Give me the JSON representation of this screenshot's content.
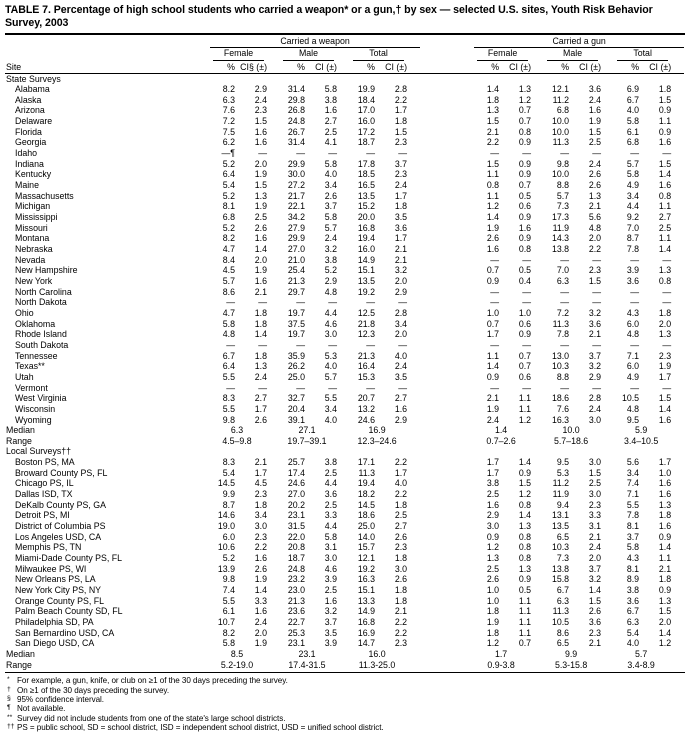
{
  "title": "TABLE 7. Percentage of high school students who carried a weapon* or a gun,† by sex — selected U.S. sites, Youth Risk Behavior Survey, 2003",
  "header": {
    "site_label": "Site",
    "groups": [
      {
        "label": "Carried a weapon"
      },
      {
        "label": "Carried a gun"
      }
    ],
    "subgroups": [
      "Female",
      "Male",
      "Total"
    ],
    "col_pct": "%",
    "col_ci_first": "CI§ (±)",
    "col_ci": "CI (±)"
  },
  "sections": [
    {
      "label": "State Surveys",
      "rows": [
        {
          "site": "Alabama",
          "values": [
            "8.2",
            "2.9",
            "31.4",
            "5.8",
            "19.9",
            "2.8",
            "1.4",
            "1.3",
            "12.1",
            "3.6",
            "6.9",
            "1.8"
          ]
        },
        {
          "site": "Alaska",
          "values": [
            "6.3",
            "2.4",
            "29.8",
            "3.8",
            "18.4",
            "2.2",
            "1.8",
            "1.2",
            "11.2",
            "2.4",
            "6.7",
            "1.5"
          ]
        },
        {
          "site": "Arizona",
          "values": [
            "7.6",
            "2.3",
            "26.8",
            "1.6",
            "17.0",
            "1.7",
            "1.3",
            "0.7",
            "6.8",
            "1.6",
            "4.0",
            "0.9"
          ]
        },
        {
          "site": "Delaware",
          "values": [
            "7.2",
            "1.5",
            "24.8",
            "2.7",
            "16.0",
            "1.8",
            "1.5",
            "0.7",
            "10.0",
            "1.9",
            "5.8",
            "1.1"
          ]
        },
        {
          "site": "Florida",
          "values": [
            "7.5",
            "1.6",
            "26.7",
            "2.5",
            "17.2",
            "1.5",
            "2.1",
            "0.8",
            "10.0",
            "1.5",
            "6.1",
            "0.9"
          ]
        },
        {
          "site": "Georgia",
          "values": [
            "6.2",
            "1.6",
            "31.4",
            "4.1",
            "18.7",
            "2.3",
            "2.2",
            "0.9",
            "11.3",
            "2.5",
            "6.8",
            "1.6"
          ]
        },
        {
          "site": "Idaho",
          "values": [
            "—¶",
            "—",
            "—",
            "—",
            "—",
            "—",
            "—",
            "—",
            "—",
            "—",
            "—",
            "—"
          ]
        },
        {
          "site": "Indiana",
          "values": [
            "5.2",
            "2.0",
            "29.9",
            "5.8",
            "17.8",
            "3.7",
            "1.5",
            "0.9",
            "9.8",
            "2.4",
            "5.7",
            "1.5"
          ]
        },
        {
          "site": "Kentucky",
          "values": [
            "6.4",
            "1.9",
            "30.0",
            "4.0",
            "18.5",
            "2.3",
            "1.1",
            "0.9",
            "10.0",
            "2.6",
            "5.8",
            "1.4"
          ]
        },
        {
          "site": "Maine",
          "values": [
            "5.4",
            "1.5",
            "27.2",
            "3.4",
            "16.5",
            "2.4",
            "0.8",
            "0.7",
            "8.8",
            "2.6",
            "4.9",
            "1.6"
          ]
        },
        {
          "site": "Massachusetts",
          "values": [
            "5.2",
            "1.3",
            "21.7",
            "2.6",
            "13.5",
            "1.7",
            "1.1",
            "0.5",
            "5.7",
            "1.3",
            "3.4",
            "0.8"
          ]
        },
        {
          "site": "Michigan",
          "values": [
            "8.1",
            "1.9",
            "22.1",
            "3.7",
            "15.2",
            "1.8",
            "1.2",
            "0.6",
            "7.3",
            "2.1",
            "4.4",
            "1.1"
          ]
        },
        {
          "site": "Mississippi",
          "values": [
            "6.8",
            "2.5",
            "34.2",
            "5.8",
            "20.0",
            "3.5",
            "1.4",
            "0.9",
            "17.3",
            "5.6",
            "9.2",
            "2.7"
          ]
        },
        {
          "site": "Missouri",
          "values": [
            "5.2",
            "2.6",
            "27.9",
            "5.7",
            "16.8",
            "3.6",
            "1.9",
            "1.6",
            "11.9",
            "4.8",
            "7.0",
            "2.5"
          ]
        },
        {
          "site": "Montana",
          "values": [
            "8.2",
            "1.6",
            "29.9",
            "2.4",
            "19.4",
            "1.7",
            "2.6",
            "0.9",
            "14.3",
            "2.0",
            "8.7",
            "1.1"
          ]
        },
        {
          "site": "Nebraska",
          "values": [
            "4.7",
            "1.4",
            "27.0",
            "3.2",
            "16.0",
            "2.1",
            "1.6",
            "0.8",
            "13.8",
            "2.2",
            "7.8",
            "1.4"
          ]
        },
        {
          "site": "Nevada",
          "values": [
            "8.4",
            "2.0",
            "21.0",
            "3.8",
            "14.9",
            "2.1",
            "—",
            "—",
            "—",
            "—",
            "—",
            "—"
          ]
        },
        {
          "site": "New Hampshire",
          "values": [
            "4.5",
            "1.9",
            "25.4",
            "5.2",
            "15.1",
            "3.2",
            "0.7",
            "0.5",
            "7.0",
            "2.3",
            "3.9",
            "1.3"
          ]
        },
        {
          "site": "New York",
          "values": [
            "5.7",
            "1.6",
            "21.3",
            "2.9",
            "13.5",
            "2.0",
            "0.9",
            "0.4",
            "6.3",
            "1.5",
            "3.6",
            "0.8"
          ]
        },
        {
          "site": "North Carolina",
          "values": [
            "8.6",
            "2.1",
            "29.7",
            "4.8",
            "19.2",
            "2.9",
            "—",
            "—",
            "—",
            "—",
            "—",
            "—"
          ]
        },
        {
          "site": "North Dakota",
          "values": [
            "—",
            "—",
            "—",
            "—",
            "—",
            "—",
            "—",
            "—",
            "—",
            "—",
            "—",
            "—"
          ]
        },
        {
          "site": "Ohio",
          "values": [
            "4.7",
            "1.8",
            "19.7",
            "4.4",
            "12.5",
            "2.8",
            "1.0",
            "1.0",
            "7.2",
            "3.2",
            "4.3",
            "1.8"
          ]
        },
        {
          "site": "Oklahoma",
          "values": [
            "5.8",
            "1.8",
            "37.5",
            "4.6",
            "21.8",
            "3.4",
            "0.7",
            "0.6",
            "11.3",
            "3.6",
            "6.0",
            "2.0"
          ]
        },
        {
          "site": "Rhode Island",
          "values": [
            "4.8",
            "1.4",
            "19.7",
            "3.0",
            "12.3",
            "2.0",
            "1.7",
            "0.9",
            "7.8",
            "2.1",
            "4.8",
            "1.3"
          ]
        },
        {
          "site": "South Dakota",
          "values": [
            "—",
            "—",
            "—",
            "—",
            "—",
            "—",
            "—",
            "—",
            "—",
            "—",
            "—",
            "—"
          ]
        },
        {
          "site": "Tennessee",
          "values": [
            "6.7",
            "1.8",
            "35.9",
            "5.3",
            "21.3",
            "4.0",
            "1.1",
            "0.7",
            "13.0",
            "3.7",
            "7.1",
            "2.3"
          ]
        },
        {
          "site": "Texas**",
          "values": [
            "6.4",
            "1.3",
            "26.2",
            "4.0",
            "16.4",
            "2.4",
            "1.4",
            "0.7",
            "10.3",
            "3.2",
            "6.0",
            "1.9"
          ]
        },
        {
          "site": "Utah",
          "values": [
            "5.5",
            "2.4",
            "25.0",
            "5.7",
            "15.3",
            "3.5",
            "0.9",
            "0.6",
            "8.8",
            "2.9",
            "4.9",
            "1.7"
          ]
        },
        {
          "site": "Vermont",
          "values": [
            "—",
            "—",
            "—",
            "—",
            "—",
            "—",
            "—",
            "—",
            "—",
            "—",
            "—",
            "—"
          ]
        },
        {
          "site": "West Virginia",
          "values": [
            "8.3",
            "2.7",
            "32.7",
            "5.5",
            "20.7",
            "2.7",
            "2.1",
            "1.1",
            "18.6",
            "2.8",
            "10.5",
            "1.5"
          ]
        },
        {
          "site": "Wisconsin",
          "values": [
            "5.5",
            "1.7",
            "20.4",
            "3.4",
            "13.2",
            "1.6",
            "1.9",
            "1.1",
            "7.6",
            "2.4",
            "4.8",
            "1.4"
          ]
        },
        {
          "site": "Wyoming",
          "values": [
            "9.8",
            "2.6",
            "39.1",
            "4.0",
            "24.6",
            "2.9",
            "2.4",
            "1.2",
            "16.3",
            "3.0",
            "9.5",
            "1.6"
          ]
        }
      ],
      "summary": [
        {
          "label": "Median",
          "values": [
            "6.3",
            "27.1",
            "16.9",
            "1.4",
            "10.0",
            "5.9"
          ]
        },
        {
          "label": "Range",
          "values": [
            "4.5–9.8",
            "19.7–39.1",
            "12.3–24.6",
            "0.7–2.6",
            "5.7–18.6",
            "3.4–10.5"
          ]
        }
      ]
    },
    {
      "label": "Local Surveys††",
      "rows": [
        {
          "site": "Boston PS, MA",
          "values": [
            "8.3",
            "2.1",
            "25.7",
            "3.8",
            "17.1",
            "2.2",
            "1.7",
            "1.4",
            "9.5",
            "3.0",
            "5.6",
            "1.7"
          ]
        },
        {
          "site": "Broward County PS, FL",
          "values": [
            "5.4",
            "1.7",
            "17.4",
            "2.5",
            "11.3",
            "1.7",
            "1.7",
            "0.9",
            "5.3",
            "1.5",
            "3.4",
            "1.0"
          ]
        },
        {
          "site": "Chicago PS, IL",
          "values": [
            "14.5",
            "4.5",
            "24.6",
            "4.4",
            "19.4",
            "4.0",
            "3.8",
            "1.5",
            "11.2",
            "2.5",
            "7.4",
            "1.6"
          ]
        },
        {
          "site": "Dallas ISD, TX",
          "values": [
            "9.9",
            "2.3",
            "27.0",
            "3.6",
            "18.2",
            "2.2",
            "2.5",
            "1.2",
            "11.9",
            "3.0",
            "7.1",
            "1.6"
          ]
        },
        {
          "site": "DeKalb County PS, GA",
          "values": [
            "8.7",
            "1.8",
            "20.2",
            "2.5",
            "14.5",
            "1.8",
            "1.6",
            "0.8",
            "9.4",
            "2.3",
            "5.5",
            "1.3"
          ]
        },
        {
          "site": "Detroit PS, MI",
          "values": [
            "14.6",
            "3.4",
            "23.1",
            "3.3",
            "18.6",
            "2.5",
            "2.9",
            "1.4",
            "13.1",
            "3.3",
            "7.8",
            "1.8"
          ]
        },
        {
          "site": "District of Columbia PS",
          "values": [
            "19.0",
            "3.0",
            "31.5",
            "4.4",
            "25.0",
            "2.7",
            "3.0",
            "1.3",
            "13.5",
            "3.1",
            "8.1",
            "1.6"
          ]
        },
        {
          "site": "Los Angeles USD, CA",
          "values": [
            "6.0",
            "2.3",
            "22.0",
            "5.8",
            "14.0",
            "2.6",
            "0.9",
            "0.8",
            "6.5",
            "2.1",
            "3.7",
            "0.9"
          ]
        },
        {
          "site": "Memphis PS, TN",
          "values": [
            "10.6",
            "2.2",
            "20.8",
            "3.1",
            "15.7",
            "2.3",
            "1.2",
            "0.8",
            "10.3",
            "2.4",
            "5.8",
            "1.4"
          ]
        },
        {
          "site": "Miami-Dade County PS, FL",
          "values": [
            "5.2",
            "1.6",
            "18.7",
            "3.0",
            "12.1",
            "1.8",
            "1.3",
            "0.8",
            "7.3",
            "2.0",
            "4.3",
            "1.1"
          ]
        },
        {
          "site": "Milwaukee PS, WI",
          "values": [
            "13.9",
            "2.6",
            "24.8",
            "4.6",
            "19.2",
            "3.0",
            "2.5",
            "1.3",
            "13.8",
            "3.7",
            "8.1",
            "2.1"
          ]
        },
        {
          "site": "New Orleans PS, LA",
          "values": [
            "9.8",
            "1.9",
            "23.2",
            "3.9",
            "16.3",
            "2.6",
            "2.6",
            "0.9",
            "15.8",
            "3.2",
            "8.9",
            "1.8"
          ]
        },
        {
          "site": "New York City PS, NY",
          "values": [
            "7.4",
            "1.4",
            "23.0",
            "2.5",
            "15.1",
            "1.8",
            "1.0",
            "0.5",
            "6.7",
            "1.4",
            "3.8",
            "0.9"
          ]
        },
        {
          "site": "Orange County PS, FL",
          "values": [
            "5.5",
            "3.3",
            "21.3",
            "1.6",
            "13.3",
            "1.8",
            "1.0",
            "1.1",
            "6.3",
            "1.5",
            "3.6",
            "1.3"
          ]
        },
        {
          "site": "Palm Beach County SD, FL",
          "values": [
            "6.1",
            "1.6",
            "23.6",
            "3.2",
            "14.9",
            "2.1",
            "1.8",
            "1.1",
            "11.3",
            "2.6",
            "6.7",
            "1.5"
          ]
        },
        {
          "site": "Philadelphia SD, PA",
          "values": [
            "10.7",
            "2.4",
            "22.7",
            "3.7",
            "16.8",
            "2.2",
            "1.9",
            "1.1",
            "10.5",
            "3.6",
            "6.3",
            "2.0"
          ]
        },
        {
          "site": "San Bernardino USD, CA",
          "values": [
            "8.2",
            "2.0",
            "25.3",
            "3.5",
            "16.9",
            "2.2",
            "1.8",
            "1.1",
            "8.6",
            "2.3",
            "5.4",
            "1.4"
          ]
        },
        {
          "site": "San Diego USD, CA",
          "values": [
            "5.8",
            "1.9",
            "23.1",
            "3.9",
            "14.7",
            "2.3",
            "1.2",
            "0.7",
            "6.5",
            "2.1",
            "4.0",
            "1.2"
          ]
        }
      ],
      "summary": [
        {
          "label": "Median",
          "values": [
            "8.5",
            "23.1",
            "16.0",
            "1.7",
            "9.9",
            "5.7"
          ]
        },
        {
          "label": "Range",
          "values": [
            "5.2-19.0",
            "17.4-31.5",
            "11.3-25.0",
            "0.9-3.8",
            "5.3-15.8",
            "3.4-8.9"
          ]
        }
      ]
    }
  ],
  "footnotes": [
    {
      "marker": "*",
      "text": "For example, a gun, knife, or club on ≥1 of the 30 days preceding the survey."
    },
    {
      "marker": "†",
      "text": "On ≥1 of the 30 days preceding the survey."
    },
    {
      "marker": "§",
      "text": "95% confidence interval."
    },
    {
      "marker": "¶",
      "text": "Not available."
    },
    {
      "marker": "**",
      "text": "Survey did not include students from one of the state's large school districts."
    },
    {
      "marker": "††",
      "text": "PS = public school, SD = school district, ISD = independent school district, USD = unified school district."
    }
  ]
}
